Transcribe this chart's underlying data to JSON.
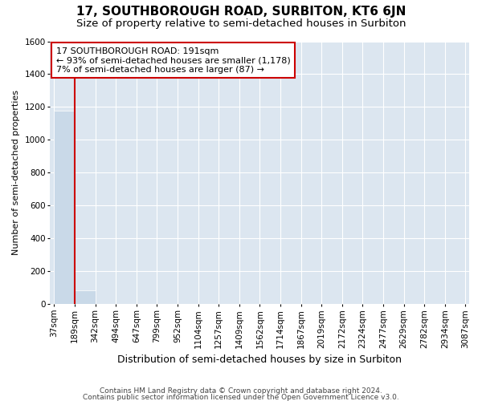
{
  "title": "17, SOUTHBOROUGH ROAD, SURBITON, KT6 6JN",
  "subtitle": "Size of property relative to semi-detached houses in Surbiton",
  "xlabel": "Distribution of semi-detached houses by size in Surbiton",
  "ylabel": "Number of semi-detached properties",
  "bin_edges": [
    37,
    189,
    342,
    494,
    647,
    799,
    952,
    1104,
    1257,
    1409,
    1562,
    1714,
    1867,
    2019,
    2172,
    2324,
    2477,
    2629,
    2782,
    2934,
    3087
  ],
  "bin_counts": [
    1178,
    87,
    0,
    0,
    0,
    0,
    0,
    0,
    0,
    0,
    0,
    0,
    0,
    0,
    0,
    0,
    0,
    0,
    0,
    0
  ],
  "property_size": 191,
  "bar_color": "#c9d9e8",
  "bar_edgecolor": "#c9d9e8",
  "red_line_color": "#cc0000",
  "annotation_line1": "17 SOUTHBOROUGH ROAD: 191sqm",
  "annotation_line2": "← 93% of semi-detached houses are smaller (1,178)",
  "annotation_line3": "7% of semi-detached houses are larger (87) →",
  "annotation_box_color": "white",
  "annotation_box_edgecolor": "#cc0000",
  "ylim": [
    0,
    1600
  ],
  "yticks": [
    0,
    200,
    400,
    600,
    800,
    1000,
    1200,
    1400,
    1600
  ],
  "footnote1": "Contains HM Land Registry data © Crown copyright and database right 2024.",
  "footnote2": "Contains public sector information licensed under the Open Government Licence v3.0.",
  "bg_color": "white",
  "plot_bg_color": "#dce6f0",
  "grid_color": "white",
  "title_fontsize": 11,
  "subtitle_fontsize": 9.5,
  "tick_label_fontsize": 7.5,
  "annotation_fontsize": 8,
  "ylabel_fontsize": 8,
  "xlabel_fontsize": 9
}
